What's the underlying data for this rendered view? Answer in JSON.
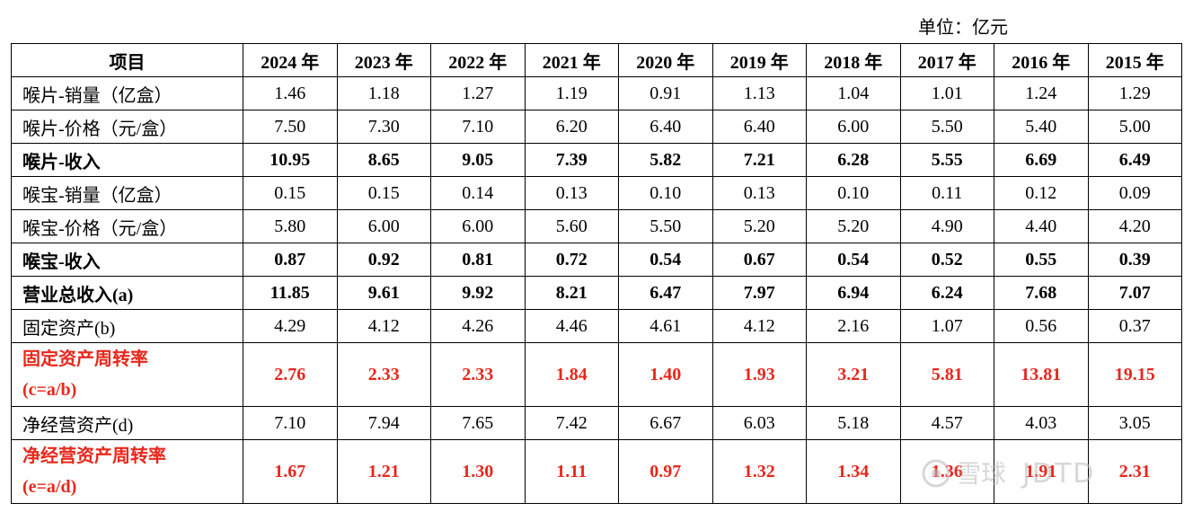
{
  "unit": "单位：亿元",
  "header": [
    "项目",
    "2024 年",
    "2023 年",
    "2022 年",
    "2021 年",
    "2020 年",
    "2019 年",
    "2018 年",
    "2017 年",
    "2016 年",
    "2015 年"
  ],
  "rows": [
    {
      "label": "喉片-销量（亿盒）",
      "values": [
        "1.46",
        "1.18",
        "1.27",
        "1.19",
        "0.91",
        "1.13",
        "1.04",
        "1.01",
        "1.24",
        "1.29"
      ]
    },
    {
      "label": "喉片-价格（元/盒）",
      "values": [
        "7.50",
        "7.30",
        "7.10",
        "6.20",
        "6.40",
        "6.40",
        "6.00",
        "5.50",
        "5.40",
        "5.00"
      ]
    },
    {
      "label": "喉片-收入",
      "values": [
        "10.95",
        "8.65",
        "9.05",
        "7.39",
        "5.82",
        "7.21",
        "6.28",
        "5.55",
        "6.69",
        "6.49"
      ]
    },
    {
      "label": "喉宝-销量（亿盒）",
      "values": [
        "0.15",
        "0.15",
        "0.14",
        "0.13",
        "0.10",
        "0.13",
        "0.10",
        "0.11",
        "0.12",
        "0.09"
      ]
    },
    {
      "label": "喉宝-价格（元/盒）",
      "values": [
        "5.80",
        "6.00",
        "6.00",
        "5.60",
        "5.50",
        "5.20",
        "5.20",
        "4.90",
        "4.40",
        "4.20"
      ]
    },
    {
      "label": "喉宝-收入",
      "values": [
        "0.87",
        "0.92",
        "0.81",
        "0.72",
        "0.54",
        "0.67",
        "0.54",
        "0.52",
        "0.55",
        "0.39"
      ]
    },
    {
      "label": "营业总收入(a)",
      "values": [
        "11.85",
        "9.61",
        "9.92",
        "8.21",
        "6.47",
        "7.97",
        "6.94",
        "6.24",
        "7.68",
        "7.07"
      ]
    },
    {
      "label": "固定资产(b)",
      "values": [
        "4.29",
        "4.12",
        "4.26",
        "4.46",
        "4.61",
        "4.12",
        "2.16",
        "1.07",
        "0.56",
        "0.37"
      ]
    },
    {
      "label_line1": "固定资产周转率",
      "label_line2": "(c=a/b)",
      "values": [
        "2.76",
        "2.33",
        "2.33",
        "1.84",
        "1.40",
        "1.93",
        "3.21",
        "5.81",
        "13.81",
        "19.15"
      ]
    },
    {
      "label": "净经营资产(d)",
      "values": [
        "7.10",
        "7.94",
        "7.65",
        "7.42",
        "6.67",
        "6.03",
        "5.18",
        "4.57",
        "4.03",
        "3.05"
      ]
    },
    {
      "label_line1": "净经营资产周转率",
      "label_line2": "(e=a/d)",
      "values": [
        "1.67",
        "1.21",
        "1.30",
        "1.11",
        "0.97",
        "1.32",
        "1.34",
        "1.36",
        "1.91",
        "2.31"
      ]
    }
  ],
  "watermark": {
    "logo_text": "雪球",
    "handle": "JDTD"
  },
  "colors": {
    "highlight": "#e8271c",
    "border": "#000000",
    "watermark": "#b8b8b8"
  }
}
